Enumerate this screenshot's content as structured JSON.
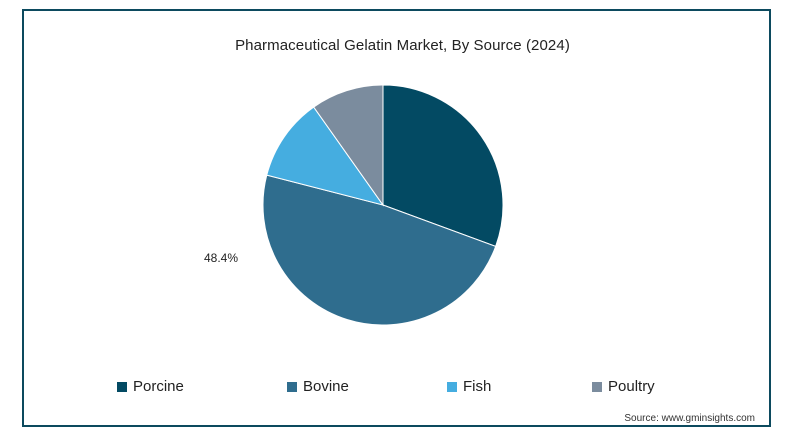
{
  "colors": {
    "frame": "#0c4a5e",
    "Porcine": "#034a63",
    "Bovine": "#2f6d8e",
    "Fish": "#45ade0",
    "Poultry": "#7b8c9e"
  },
  "chart_data": {
    "type": "pie",
    "title": "Pharmaceutical Gelatin  Market, By Source (2024)",
    "categories": [
      "Porcine",
      "Bovine",
      "Fish",
      "Poultry"
    ],
    "values": [
      30.6,
      48.4,
      11.2,
      9.8
    ],
    "data_labels": [
      {
        "category": "Bovine",
        "text": "48.4%"
      }
    ],
    "legend_position": "bottom",
    "source": "Source: www.gminsights.com"
  }
}
